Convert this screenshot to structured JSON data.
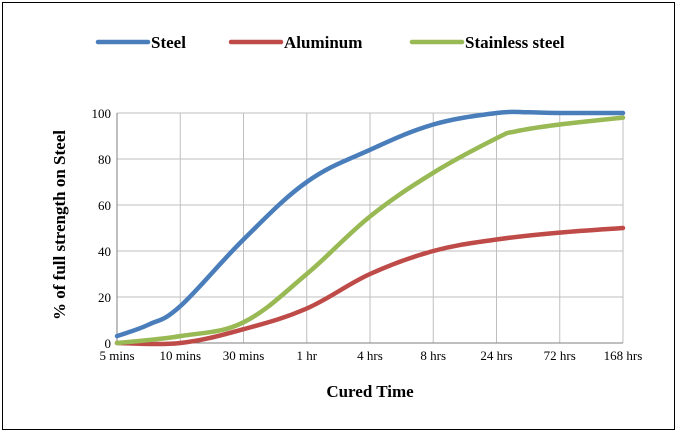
{
  "chart_data": {
    "type": "line",
    "title": "",
    "xlabel": "Cured Time",
    "ylabel": "% of full strength on Steel",
    "categories": [
      "5 mins",
      "10 mins",
      "30 mins",
      "1 hr",
      "4 hrs",
      "8 hrs",
      "24 hrs",
      "72 hrs",
      "168 hrs"
    ],
    "ylim": [
      0,
      100
    ],
    "yticks": [
      0,
      20,
      40,
      60,
      80,
      100
    ],
    "grid": true,
    "legend_position": "top",
    "series": [
      {
        "name": "Steel",
        "color": "#4a7ebb",
        "x": [
          0,
          0.5,
          1,
          2,
          3,
          4,
          5,
          6,
          6.5,
          7,
          8
        ],
        "values": [
          3,
          8,
          16,
          45,
          70,
          84,
          95,
          100,
          100.3,
          100,
          100
        ]
      },
      {
        "name": "Aluminum",
        "color": "#be4b48",
        "x": [
          0,
          1,
          2,
          3,
          4,
          5,
          6,
          7,
          8
        ],
        "values": [
          0,
          0,
          6,
          15,
          30,
          40,
          45,
          48,
          50
        ]
      },
      {
        "name": "Stainless steel",
        "color": "#98b954",
        "x": [
          0,
          1,
          2,
          3,
          4,
          5,
          6,
          6.3,
          7,
          8
        ],
        "values": [
          0,
          3,
          9,
          30,
          55,
          74,
          89,
          92,
          95,
          98
        ]
      }
    ]
  }
}
